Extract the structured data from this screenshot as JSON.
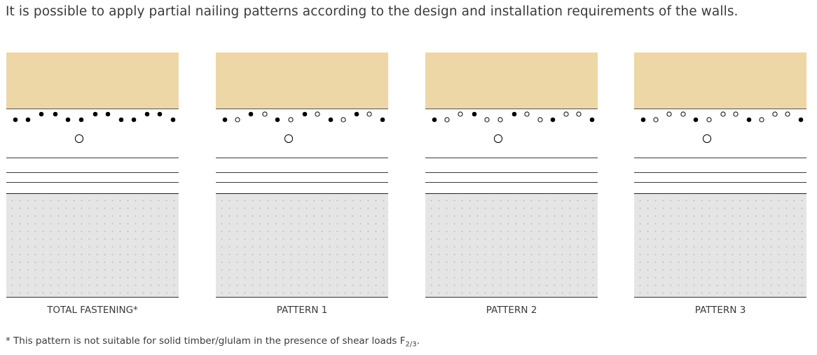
{
  "intro_text": "It is possible to apply partial nailing patterns according to the design and installation requirements of the walls.",
  "colors": {
    "timber": "#edd7a6",
    "concrete": "#e5e5e5",
    "nail_filled": "#000000",
    "nail_empty_stroke": "#000000"
  },
  "panels": [
    {
      "caption": "TOTAL FASTENING*",
      "nails": [
        1,
        1,
        1,
        1,
        1,
        1,
        1,
        1,
        1,
        1,
        1,
        1,
        1
      ]
    },
    {
      "caption": "PATTERN 1",
      "nails": [
        1,
        0,
        1,
        0,
        1,
        0,
        1,
        0,
        1,
        0,
        1,
        0,
        1
      ]
    },
    {
      "caption": "PATTERN 2",
      "nails": [
        1,
        0,
        0,
        1,
        0,
        0,
        1,
        0,
        0,
        1,
        0,
        0,
        1
      ]
    },
    {
      "caption": "PATTERN 3",
      "nails": [
        1,
        0,
        0,
        0,
        1,
        0,
        0,
        0,
        1,
        0,
        0,
        0,
        1
      ]
    }
  ],
  "footnote": {
    "text": "* This pattern is not suitable for solid timber/glulam in the presence of shear loads F",
    "subscript": "2/3",
    "end": "."
  }
}
